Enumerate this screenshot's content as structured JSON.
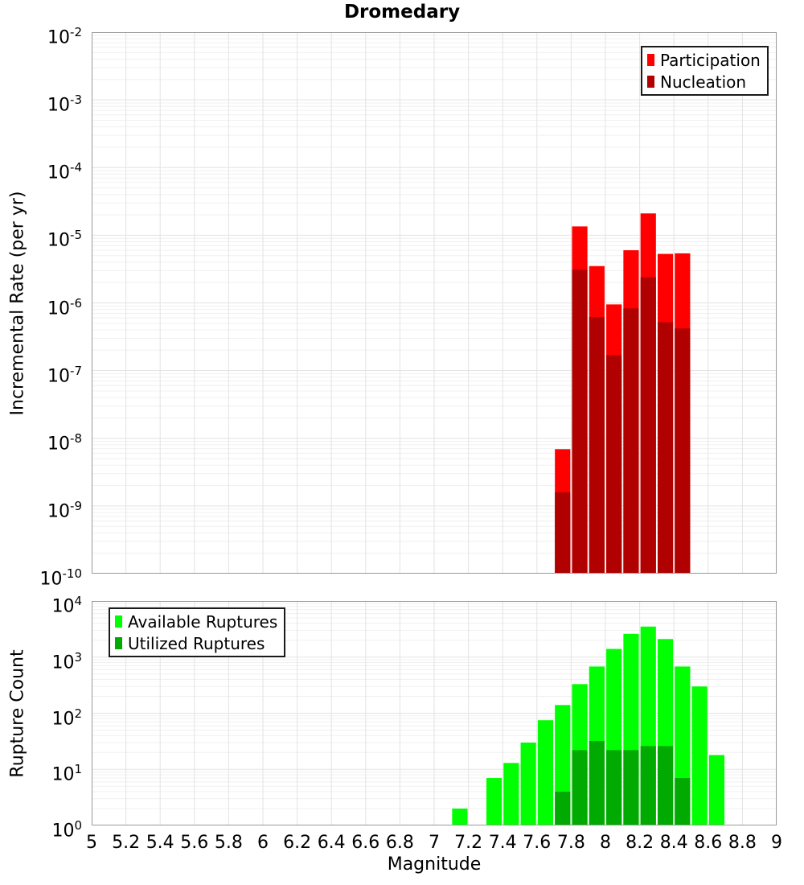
{
  "figure": {
    "title": "Dromedary"
  },
  "chart_data": [
    {
      "id": "incremental_rate_panel",
      "type": "bar",
      "title": "Dromedary",
      "ylabel": "Incremental Rate (per yr)",
      "yscale": "log",
      "xlim": [
        5,
        9
      ],
      "ylim": [
        1e-10,
        0.01
      ],
      "bar_width": 0.1,
      "grid": true,
      "legend_position": "top-right",
      "ytick_exponents": [
        -2,
        -3,
        -4,
        -5,
        -6,
        -7,
        -8,
        -9,
        -10
      ],
      "xticks": [
        5,
        5.2,
        5.4,
        5.6,
        5.8,
        6,
        6.2,
        6.4,
        6.6,
        6.8,
        7,
        7.2,
        7.4,
        7.6,
        7.8,
        8,
        8.2,
        8.4,
        8.6,
        8.8,
        9
      ],
      "series": [
        {
          "name": "Participation",
          "color": "#ff0000",
          "x": [
            7.75,
            7.85,
            7.95,
            8.05,
            8.15,
            8.25,
            8.35,
            8.45
          ],
          "y": [
            6.9e-09,
            1.35e-05,
            3.5e-06,
            9.5e-07,
            6e-06,
            2.1e-05,
            5.3e-06,
            5.4e-06
          ]
        },
        {
          "name": "Nucleation",
          "color": "#b00000",
          "x": [
            7.75,
            7.85,
            7.95,
            8.05,
            8.15,
            8.25,
            8.35,
            8.45
          ],
          "y": [
            1.6e-09,
            3.1e-06,
            6.2e-07,
            1.7e-07,
            8.3e-07,
            2.4e-06,
            5.2e-07,
            4.2e-07
          ]
        }
      ]
    },
    {
      "id": "rupture_count_panel",
      "type": "bar",
      "xlabel": "Magnitude",
      "ylabel": "Rupture Count",
      "yscale": "log",
      "xlim": [
        5,
        9
      ],
      "ylim": [
        1,
        10000.0
      ],
      "bar_width": 0.1,
      "grid": true,
      "legend_position": "top-left",
      "ytick_exponents": [
        4,
        3,
        2,
        1,
        0
      ],
      "xticks": [
        5,
        5.2,
        5.4,
        5.6,
        5.8,
        6,
        6.2,
        6.4,
        6.6,
        6.8,
        7,
        7.2,
        7.4,
        7.6,
        7.8,
        8,
        8.2,
        8.4,
        8.6,
        8.8,
        9
      ],
      "xtick_labels": [
        "5",
        "5.2",
        "5.4",
        "5.6",
        "5.8",
        "6",
        "6.2",
        "6.4",
        "6.6",
        "6.8",
        "7",
        "7.2",
        "7.4",
        "7.6",
        "7.8",
        "8",
        "8.2",
        "8.4",
        "8.6",
        "8.8",
        "9"
      ],
      "series": [
        {
          "name": "Available Ruptures",
          "color": "#00ff00",
          "x": [
            7.15,
            7.35,
            7.45,
            7.55,
            7.65,
            7.75,
            7.85,
            7.95,
            8.05,
            8.15,
            8.25,
            8.35,
            8.45,
            8.55,
            8.65
          ],
          "y": [
            2,
            7,
            13,
            30,
            75,
            140,
            330,
            680,
            1400,
            2600,
            3500,
            2100,
            680,
            300,
            18
          ]
        },
        {
          "name": "Utilized Ruptures",
          "color": "#00aa00",
          "x": [
            7.75,
            7.85,
            7.95,
            8.05,
            8.15,
            8.25,
            8.35,
            8.45
          ],
          "y": [
            4,
            22,
            32,
            22,
            22,
            26,
            26,
            7
          ]
        }
      ]
    }
  ]
}
